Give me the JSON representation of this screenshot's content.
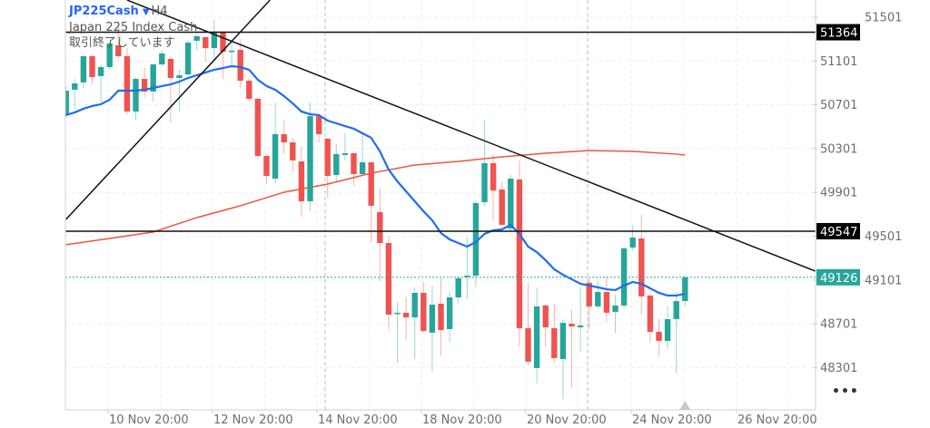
{
  "header": {
    "symbol": "JP225Cash",
    "dropdown_icon": "caret-down-icon",
    "timeframe": "H4",
    "description": "Japan 225 Index Cash",
    "status": "取引終了しています"
  },
  "more_label": "•••",
  "colors": {
    "up": "#26a69a",
    "down": "#ef5350",
    "ma_fast": "#1f6cf2",
    "ma_slow": "#f0533f",
    "symbol": "#2962ff",
    "line_label_bg": "#000000",
    "last_price_bg": "#26a69a"
  },
  "chart_data": {
    "type": "candlestick",
    "title": "",
    "xlabel": "",
    "ylabel": "",
    "ylim": [
      48100,
      51660
    ],
    "grid": true,
    "y_ticks": [
      51501,
      51101,
      50701,
      50301,
      49901,
      49501,
      49101,
      48701,
      48301
    ],
    "x_tick_labels": [
      "10 Nov 20:00",
      "12 Nov 20:00",
      "14 Nov 20:00",
      "18 Nov 20:00",
      "20 Nov 20:00",
      "24 Nov 20:00",
      "26 Nov 20:00"
    ],
    "ohlc": [
      [
        50607,
        50872,
        50582,
        50830
      ],
      [
        50839,
        50938,
        50665,
        50897
      ],
      [
        50905,
        51170,
        50847,
        51145
      ],
      [
        51145,
        51162,
        50888,
        50955
      ],
      [
        50963,
        51062,
        50723,
        51046
      ],
      [
        51046,
        51277,
        51021,
        51261
      ],
      [
        51244,
        51468,
        51128,
        51145
      ],
      [
        51145,
        51219,
        50607,
        50640
      ],
      [
        50640,
        50955,
        50565,
        50938
      ],
      [
        50938,
        51037,
        50772,
        50822
      ],
      [
        50822,
        51079,
        50731,
        51070
      ],
      [
        51070,
        51195,
        51054,
        51170
      ],
      [
        51120,
        51145,
        50541,
        50946
      ],
      [
        50946,
        51021,
        50640,
        50971
      ],
      [
        50979,
        51286,
        50963,
        51269
      ],
      [
        51286,
        51352,
        51203,
        51327
      ],
      [
        51319,
        51327,
        51095,
        51219
      ],
      [
        51219,
        51476,
        51120,
        51369
      ],
      [
        51369,
        51369,
        50938,
        51186
      ],
      [
        51186,
        51269,
        51054,
        51195
      ],
      [
        51203,
        51302,
        50847,
        50921
      ],
      [
        50921,
        50938,
        50731,
        50756
      ],
      [
        50756,
        50772,
        50209,
        50234
      ],
      [
        50234,
        50251,
        49977,
        50052
      ],
      [
        50027,
        50723,
        49986,
        50433
      ],
      [
        50433,
        50557,
        50251,
        50358
      ],
      [
        50358,
        50400,
        50085,
        50193
      ],
      [
        50184,
        50317,
        49679,
        49820
      ],
      [
        49820,
        50723,
        49729,
        50598
      ],
      [
        50598,
        50615,
        50358,
        50433
      ],
      [
        50391,
        50400,
        49853,
        50052
      ],
      [
        50060,
        50342,
        50002,
        50251
      ],
      [
        50243,
        50441,
        50193,
        50259
      ],
      [
        50259,
        50259,
        49961,
        50068
      ],
      [
        50068,
        50425,
        50060,
        50176
      ],
      [
        50176,
        50184,
        49447,
        49779
      ],
      [
        49721,
        49936,
        49092,
        49439
      ],
      [
        49439,
        49506,
        48653,
        48785
      ],
      [
        48793,
        48901,
        48346,
        48802
      ],
      [
        48802,
        48942,
        48553,
        48760
      ],
      [
        48760,
        49034,
        48379,
        48984
      ],
      [
        48984,
        49083,
        48620,
        48636
      ],
      [
        48620,
        49050,
        48264,
        48876
      ],
      [
        48885,
        49116,
        48412,
        48644
      ],
      [
        48653,
        48992,
        48537,
        48942
      ],
      [
        48942,
        49133,
        48885,
        49117
      ],
      [
        49133,
        49489,
        48926,
        49141
      ],
      [
        49141,
        49820,
        49034,
        49804
      ],
      [
        49812,
        50565,
        49779,
        50168
      ],
      [
        50168,
        50251,
        49646,
        49919
      ],
      [
        49928,
        50002,
        49588,
        49605
      ],
      [
        49572,
        50060,
        49547,
        50027
      ],
      [
        50019,
        50193,
        48495,
        48661
      ],
      [
        48661,
        49075,
        48330,
        48355
      ],
      [
        48297,
        49025,
        48156,
        48860
      ],
      [
        48868,
        48885,
        48495,
        48669
      ],
      [
        48661,
        48885,
        48346,
        48388
      ],
      [
        48379,
        48744,
        48015,
        48710
      ],
      [
        48702,
        48827,
        48123,
        48677
      ],
      [
        48669,
        49034,
        48446,
        48686
      ],
      [
        49075,
        49117,
        48653,
        48860
      ],
      [
        48860,
        49108,
        48843,
        48992
      ],
      [
        48992,
        49133,
        48719,
        48802
      ],
      [
        48810,
        48967,
        48620,
        48868
      ],
      [
        48868,
        49406,
        48843,
        49390
      ],
      [
        49398,
        49605,
        49365,
        49489
      ],
      [
        49481,
        49696,
        48785,
        48951
      ],
      [
        48959,
        48984,
        48528,
        48628
      ],
      [
        48628,
        48744,
        48412,
        48545
      ],
      [
        48545,
        48860,
        48470,
        48744
      ],
      [
        48744,
        48992,
        48247,
        48909
      ],
      [
        48909,
        49149,
        48860,
        49126
      ]
    ],
    "ma_fast": [
      50607,
      50632,
      50665,
      50690,
      50706,
      50748,
      50830,
      50830,
      50830,
      50839,
      50855,
      50872,
      50888,
      50913,
      50946,
      50971,
      50996,
      51021,
      51037,
      51054,
      51046,
      51021,
      50930,
      50872,
      50839,
      50781,
      50714,
      50640,
      50615,
      50607,
      50557,
      50532,
      50507,
      50483,
      50441,
      50400,
      50276,
      50110,
      50002,
      49911,
      49820,
      49729,
      49646,
      49530,
      49472,
      49439,
      49406,
      49448,
      49522,
      49555,
      49563,
      49605,
      49522,
      49406,
      49356,
      49282,
      49199,
      49149,
      49108,
      49067,
      49050,
      49034,
      49017,
      49009,
      49050,
      49083,
      49067,
      49025,
      48984,
      48959,
      48959,
      48976
    ],
    "ma_slow": [
      {
        "i": 0,
        "v": 49423
      },
      {
        "i": 10,
        "v": 49539
      },
      {
        "i": 15,
        "v": 49671
      },
      {
        "i": 20,
        "v": 49779
      },
      {
        "i": 25,
        "v": 49903
      },
      {
        "i": 30,
        "v": 49977
      },
      {
        "i": 35,
        "v": 50077
      },
      {
        "i": 40,
        "v": 50151
      },
      {
        "i": 45,
        "v": 50184
      },
      {
        "i": 50,
        "v": 50226
      },
      {
        "i": 55,
        "v": 50259
      },
      {
        "i": 60,
        "v": 50284
      },
      {
        "i": 65,
        "v": 50276
      },
      {
        "i": 70,
        "v": 50251
      },
      {
        "i": 71,
        "v": 50242
      }
    ],
    "horizontal_lines": [
      51364,
      49547
    ],
    "trend_lines": [
      {
        "from": {
          "i": 7.0,
          "v": 51658
        },
        "to": {
          "i": 86.2,
          "v": 49174
        }
      },
      {
        "from": {
          "i": 0,
          "v": 49655
        },
        "to": {
          "i": 23.4,
          "v": 51658
        }
      }
    ],
    "last_price": 49126,
    "price_labels": {
      "line_1": "51364",
      "line_2": "49547",
      "last": "49126"
    }
  }
}
